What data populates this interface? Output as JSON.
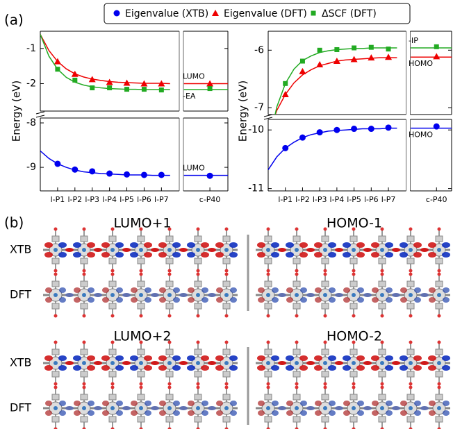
{
  "panel_labels": [
    "(a)",
    "(b)"
  ],
  "chart_data": [
    {
      "type": "scatter",
      "ylabel": "Energy (eV)",
      "xlim": [
        0,
        10.84
      ],
      "ylim": [
        -2.78,
        -0.51
      ],
      "yticks": [
        -2,
        -1
      ],
      "x": [
        1,
        2,
        3,
        4,
        5,
        6,
        7,
        9.8
      ],
      "fit_x": [
        0,
        0.5,
        1,
        1.5,
        2,
        2.5,
        3,
        3.5,
        4,
        4.5,
        5,
        5.5,
        6,
        6.5,
        7,
        7.5,
        8,
        8.3,
        10.84
      ],
      "series": [
        {
          "name": "Eigenvalue (DFT)",
          "color": "#ee0000",
          "marker": "triangle",
          "label": "LUMO",
          "values": [
            -1.37,
            -1.73,
            -1.88,
            -1.96,
            -1.98,
            -2.0,
            -2.0,
            -2.0
          ],
          "fit_values": [
            -0.6,
            -1.06,
            -1.37,
            -1.58,
            -1.72,
            -1.81,
            -1.87,
            -1.91,
            -1.94,
            -1.96,
            -1.97,
            -1.98,
            -1.99,
            -1.99,
            -1.99,
            -2.0,
            null,
            -2.0,
            -2.0
          ]
        },
        {
          "name": "ΔSCF (DFT)",
          "color": "#22aa22",
          "marker": "square",
          "label": "-EA",
          "values": [
            -1.59,
            -1.9,
            -2.12,
            -2.12,
            -2.16,
            -2.16,
            -2.18,
            -2.14
          ],
          "fit_values": [
            -0.6,
            -1.22,
            -1.59,
            -1.82,
            -1.96,
            -2.04,
            -2.09,
            -2.12,
            -2.14,
            -2.15,
            -2.16,
            -2.16,
            -2.17,
            -2.17,
            -2.17,
            -2.17,
            null,
            -2.17,
            -2.17
          ]
        }
      ]
    },
    {
      "type": "scatter",
      "xlim": [
        0,
        10.84
      ],
      "ylim": [
        -9.53,
        -7.89
      ],
      "yticks": [
        -9,
        -8
      ],
      "x": [
        1,
        2,
        3,
        4,
        5,
        6,
        7,
        9.8
      ],
      "xticks": [
        {
          "value": 1,
          "label": "l-P1"
        },
        {
          "value": 2,
          "label": "l-P2"
        },
        {
          "value": 3,
          "label": "l-P3"
        },
        {
          "value": 4,
          "label": "l-P4"
        },
        {
          "value": 5,
          "label": "l-P5"
        },
        {
          "value": 6,
          "label": "l-P6"
        },
        {
          "value": 7,
          "label": "l-P7"
        },
        {
          "value": 9.8,
          "label": "c-P40"
        }
      ],
      "fit_x": [
        0,
        0.5,
        1,
        1.5,
        2,
        2.5,
        3,
        3.5,
        4,
        4.5,
        5,
        5.5,
        6,
        6.5,
        7,
        7.5,
        8,
        8.3,
        10.84
      ],
      "series": [
        {
          "name": "Eigenvalue (XTB)",
          "color": "#0000ee",
          "marker": "circle",
          "label": "LUMO",
          "values": [
            -8.92,
            -9.05,
            -9.09,
            -9.14,
            -9.16,
            -9.17,
            -9.17,
            -9.19
          ],
          "fit_values": [
            -8.63,
            -8.8,
            -8.92,
            -9.0,
            -9.06,
            -9.1,
            -9.12,
            -9.14,
            -9.15,
            -9.16,
            -9.17,
            -9.17,
            -9.17,
            -9.18,
            -9.18,
            -9.18,
            null,
            -9.18,
            -9.18
          ]
        }
      ]
    },
    {
      "type": "scatter",
      "ylabel": "Energy (eV)",
      "xlim": [
        0,
        10.68
      ],
      "ylim": [
        -7.12,
        -5.67
      ],
      "yticks": [
        -7,
        -6
      ],
      "x": [
        1,
        2,
        3,
        4,
        5,
        6,
        7,
        9.8
      ],
      "fit_x": [
        0,
        0.5,
        1,
        1.5,
        2,
        2.5,
        3,
        3.5,
        4,
        4.5,
        5,
        5.5,
        6,
        6.5,
        7,
        7.5,
        8,
        8.3,
        10.68
      ],
      "series": [
        {
          "name": "Eigenvalue (DFT)",
          "color": "#ee0000",
          "marker": "triangle",
          "label": "HOMO",
          "values": [
            -6.77,
            -6.37,
            -6.25,
            -6.19,
            -6.16,
            -6.13,
            -6.12,
            -6.11
          ],
          "fit_values": [
            -7.46,
            -7.05,
            -6.77,
            -6.57,
            -6.43,
            -6.34,
            -6.27,
            -6.23,
            -6.19,
            -6.17,
            -6.16,
            -6.15,
            -6.14,
            -6.13,
            -6.13,
            -6.13,
            null,
            -6.12,
            -6.12
          ]
        },
        {
          "name": "ΔSCF (DFT)",
          "color": "#22aa22",
          "marker": "square",
          "label": "-IP",
          "values": [
            -6.58,
            -6.19,
            -6.0,
            -5.99,
            -5.96,
            -5.95,
            -5.98,
            -5.94
          ],
          "fit_values": [
            -7.67,
            -6.99,
            -6.58,
            -6.33,
            -6.18,
            -6.1,
            -6.04,
            -6.01,
            -5.99,
            -5.98,
            -5.97,
            -5.97,
            -5.96,
            -5.96,
            -5.96,
            -5.96,
            null,
            -5.96,
            -5.96
          ]
        }
      ]
    },
    {
      "type": "scatter",
      "xlim": [
        0,
        10.68
      ],
      "ylim": [
        -11.04,
        -9.82
      ],
      "yticks": [
        -11,
        -10
      ],
      "x": [
        1,
        2,
        3,
        4,
        5,
        6,
        7,
        9.8
      ],
      "xticks": [
        {
          "value": 1,
          "label": "l-P1"
        },
        {
          "value": 2,
          "label": "l-P2"
        },
        {
          "value": 3,
          "label": "l-P3"
        },
        {
          "value": 4,
          "label": "l-P4"
        },
        {
          "value": 5,
          "label": "l-P5"
        },
        {
          "value": 6,
          "label": "l-P6"
        },
        {
          "value": 7,
          "label": "l-P7"
        },
        {
          "value": 9.8,
          "label": "c-P40"
        }
      ],
      "fit_x": [
        0,
        0.5,
        1,
        1.5,
        2,
        2.5,
        3,
        3.5,
        4,
        4.5,
        5,
        5.5,
        6,
        6.5,
        7,
        7.5,
        8,
        8.3,
        10.68
      ],
      "series": [
        {
          "name": "Eigenvalue (XTB)",
          "color": "#0000ee",
          "marker": "circle",
          "label": "HOMO",
          "values": [
            -10.31,
            -10.13,
            -10.04,
            -10.0,
            -9.98,
            -9.98,
            -9.96,
            -9.94
          ],
          "fit_values": [
            -10.68,
            -10.46,
            -10.31,
            -10.21,
            -10.13,
            -10.08,
            -10.05,
            -10.02,
            -10.01,
            -10.0,
            -9.99,
            -9.98,
            -9.98,
            -9.98,
            -9.97,
            -9.97,
            null,
            -9.97,
            -9.97
          ]
        }
      ]
    }
  ],
  "orbitals": {
    "titles": [
      "LUMO+1",
      "HOMO-1",
      "LUMO+2",
      "HOMO-2"
    ],
    "row_labels": [
      "XTB",
      "DFT",
      "XTB",
      "DFT"
    ]
  }
}
